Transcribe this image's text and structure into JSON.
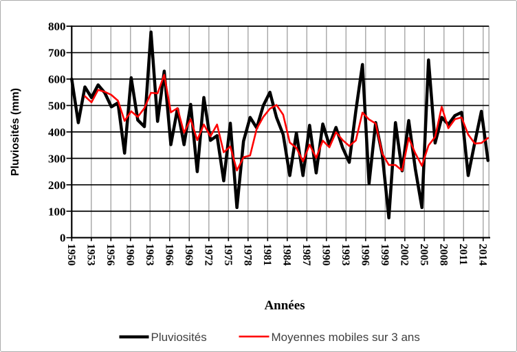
{
  "figure": {
    "background": "#FFFFFF",
    "border_color": "#ABABAB"
  },
  "chart_data": {
    "type": "line",
    "title": "",
    "xlabel": "Années",
    "ylabel": "Pluviosités (mm)",
    "ylim": [
      0,
      800
    ],
    "ytick_step": 100,
    "ytick_labels": [
      "0",
      "100",
      "200",
      "300",
      "400",
      "500",
      "600",
      "700",
      "800"
    ],
    "xtick_labels": [
      "1950",
      "1953",
      "1956",
      "1960",
      "1963",
      "1966",
      "1969",
      "1972",
      "1975",
      "1978",
      "1981",
      "1984",
      "1987",
      "1990",
      "1993",
      "1996",
      "1999",
      "2002",
      "2005",
      "2008",
      "2011",
      "2014"
    ],
    "grid": {
      "horizontal_color": "#000000",
      "vertical_color": "#A6A6A6",
      "axis_color": "#000000"
    },
    "series": [
      {
        "name": "Pluviosités",
        "color": "#000000",
        "stroke_width": 4.5,
        "start_index": 0,
        "values": [
          600,
          435,
          570,
          530,
          578,
          548,
          495,
          510,
          320,
          605,
          445,
          420,
          778,
          440,
          630,
          352,
          487,
          352,
          504,
          250,
          530,
          368,
          386,
          215,
          433,
          114,
          365,
          455,
          415,
          500,
          550,
          455,
          390,
          235,
          396,
          235,
          425,
          245,
          430,
          350,
          417,
          340,
          285,
          480,
          655,
          205,
          435,
          315,
          75,
          435,
          253,
          443,
          260,
          114,
          672,
          358,
          455,
          428,
          462,
          474,
          235,
          360,
          478,
          292
        ]
      },
      {
        "name": "Moyennes mobiles sur 3 ans",
        "color": "#FF0000",
        "stroke_width": 2.6,
        "start_index": 2,
        "values": [
          535,
          512,
          559,
          552,
          540,
          518,
          442,
          478,
          457,
          490,
          548,
          546,
          616,
          474,
          490,
          397,
          448,
          369,
          428,
          383,
          428,
          323,
          345,
          254,
          304,
          311,
          412,
          457,
          488,
          502,
          465,
          360,
          340,
          289,
          352,
          302,
          367,
          342,
          399,
          369,
          347,
          368,
          473,
          447,
          432,
          318,
          275,
          275,
          254,
          377,
          319,
          272,
          349,
          381,
          495,
          414,
          448,
          455,
          390,
          356,
          358,
          377
        ]
      }
    ],
    "legend": {
      "position": "bottom",
      "entries": [
        "Pluviosités",
        "Moyennes mobiles sur 3 ans"
      ]
    }
  }
}
